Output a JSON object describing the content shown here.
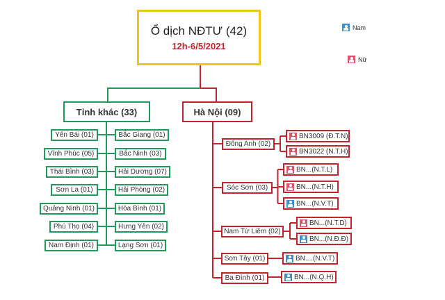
{
  "root": {
    "title": "Ổ dịch NĐTƯ (42)",
    "subtitle": "12h-6/5/2021"
  },
  "legend": {
    "male": "Nam",
    "female": "Nữ"
  },
  "colors": {
    "title_border": "#f0c419",
    "subtitle": "#c4232b",
    "other_provinces": "#1f9a5a",
    "hanoi": "#c4232b",
    "male_icon": "#3d8fc6",
    "female_icon": "#d9566e"
  },
  "other": {
    "label": "Tỉnh khác (33)",
    "left": [
      "Yên Bái (01)",
      "Vĩnh Phúc (05)",
      "Thái Bình (03)",
      "Sơn La (01)",
      "Quảng Ninh (01)",
      "Phú Thọ (04)",
      "Nam Định (01)"
    ],
    "right": [
      "Bắc Giang (01)",
      "Bắc Ninh (03)",
      "Hải Dương (07)",
      "Hải Phòng (02)",
      "Hòa Bình (01)",
      "Hưng Yên (02)",
      "Lạng Sơn (01)"
    ]
  },
  "hanoi": {
    "label": "Hà Nội (09)",
    "districts": [
      {
        "label": "Đông Anh (02)",
        "patients": [
          {
            "label": "BN3009 (Đ.T.N)",
            "sex": "female"
          },
          {
            "label": "BN3022 (N.T.H)",
            "sex": "female"
          }
        ]
      },
      {
        "label": "Sóc Sơn (03)",
        "patients": [
          {
            "label": "BN...(N.T.L)",
            "sex": "female"
          },
          {
            "label": "BN...(N.T.H)",
            "sex": "female"
          },
          {
            "label": "BN...(N.V.T)",
            "sex": "male"
          }
        ]
      },
      {
        "label": "Nam Từ Liêm (02)",
        "patients": [
          {
            "label": "BN...(N.T.D)",
            "sex": "female"
          },
          {
            "label": "BN...(N.Đ.Đ)",
            "sex": "male"
          }
        ]
      },
      {
        "label": "Sơn Tây (01)",
        "patients": [
          {
            "label": "BN....(N.V.T)",
            "sex": "male"
          }
        ]
      },
      {
        "label": "Ba Đình (01)",
        "patients": [
          {
            "label": "BN...(N.Q.H)",
            "sex": "male"
          }
        ]
      }
    ]
  }
}
